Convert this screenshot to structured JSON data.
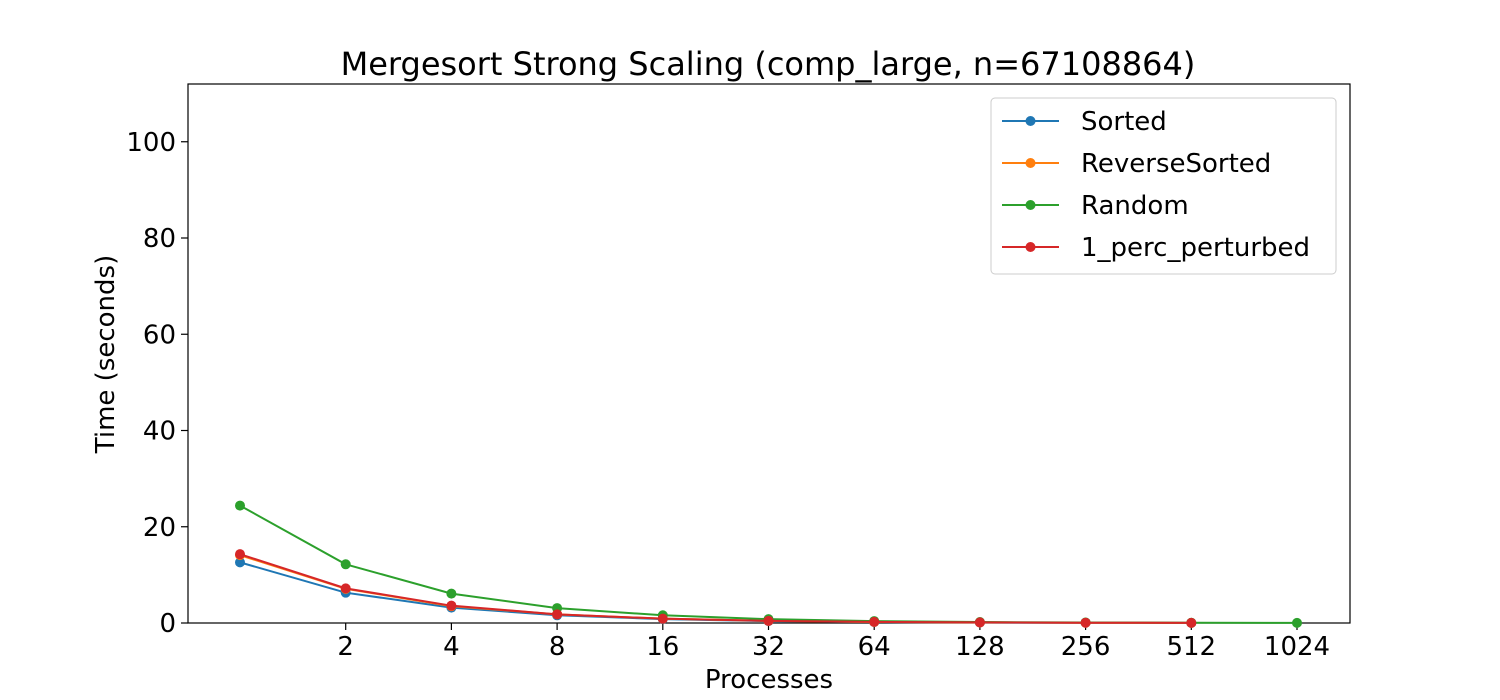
{
  "chart_data": {
    "type": "line",
    "title": "Mergesort Strong Scaling (comp_large, n=67108864)",
    "xlabel": "Processes",
    "ylabel": "Time (seconds)",
    "x_scale": "log2",
    "x": [
      1,
      2,
      4,
      8,
      16,
      32,
      64,
      128,
      256,
      512,
      1024
    ],
    "x_tick_values": [
      2,
      4,
      8,
      16,
      32,
      64,
      128,
      256,
      512,
      1024
    ],
    "x_tick_labels": [
      "2",
      "4",
      "8",
      "16",
      "32",
      "64",
      "128",
      "256",
      "512",
      "1024"
    ],
    "ylim": [
      0,
      112
    ],
    "y_ticks": [
      0,
      20,
      40,
      60,
      80,
      100
    ],
    "grid": false,
    "legend_position": "top-right",
    "series": [
      {
        "name": "Sorted",
        "color": "#1f77b4",
        "values": [
          12.6,
          6.3,
          3.2,
          1.6,
          0.8,
          0.4,
          0.2,
          0.1,
          0.06,
          0.03,
          null
        ]
      },
      {
        "name": "ReverseSorted",
        "color": "#ff7f0e",
        "values": [
          14.1,
          7.1,
          3.5,
          1.8,
          0.9,
          0.45,
          0.22,
          0.11,
          0.06,
          0.03,
          null
        ]
      },
      {
        "name": "Random",
        "color": "#2ca02c",
        "values": [
          24.4,
          12.2,
          6.1,
          3.1,
          1.6,
          0.8,
          0.4,
          0.2,
          0.1,
          0.05,
          0.03
        ]
      },
      {
        "name": "1_perc_perturbed",
        "color": "#d62728",
        "values": [
          14.3,
          7.2,
          3.6,
          1.8,
          0.9,
          0.45,
          0.23,
          0.12,
          0.06,
          0.03,
          null
        ]
      }
    ]
  }
}
